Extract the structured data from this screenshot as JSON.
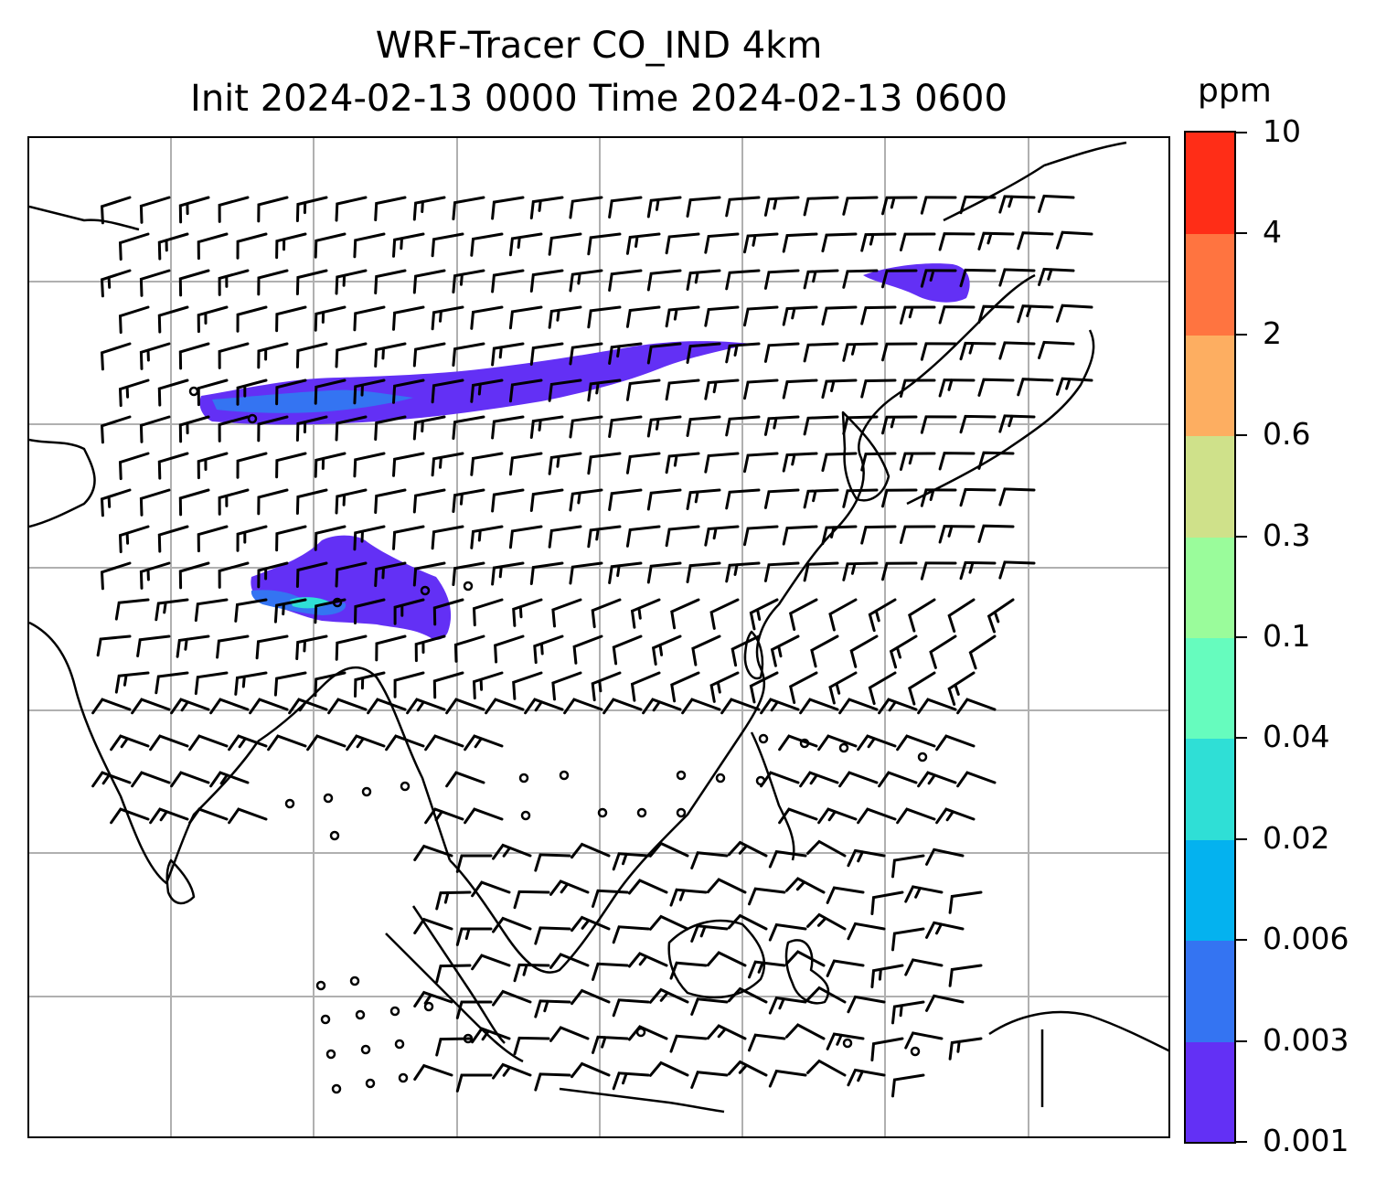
{
  "title": {
    "line1": "WRF-Tracer CO_IND 4km",
    "line2": "Init 2024-02-13 0000 Time 2024-02-13 0600"
  },
  "colorbar": {
    "unit": "ppm",
    "labels": [
      "0.001",
      "0.003",
      "0.006",
      "0.02",
      "0.04",
      "0.1",
      "0.3",
      "0.6",
      "2",
      "4",
      "10"
    ],
    "colors": [
      "#6330f5",
      "#3474f2",
      "#04b2ef",
      "#2fdfd6",
      "#66fcbe",
      "#9afc9b",
      "#cfe18a",
      "#fdae61",
      "#ff7440",
      "#ff2d17"
    ]
  },
  "map": {
    "gridlines": true,
    "coastline_color": "#000000",
    "gridline_color": "#b0b0b0",
    "overlays": [
      "wind-barbs",
      "tracer-concentration-contours",
      "coastlines"
    ]
  }
}
